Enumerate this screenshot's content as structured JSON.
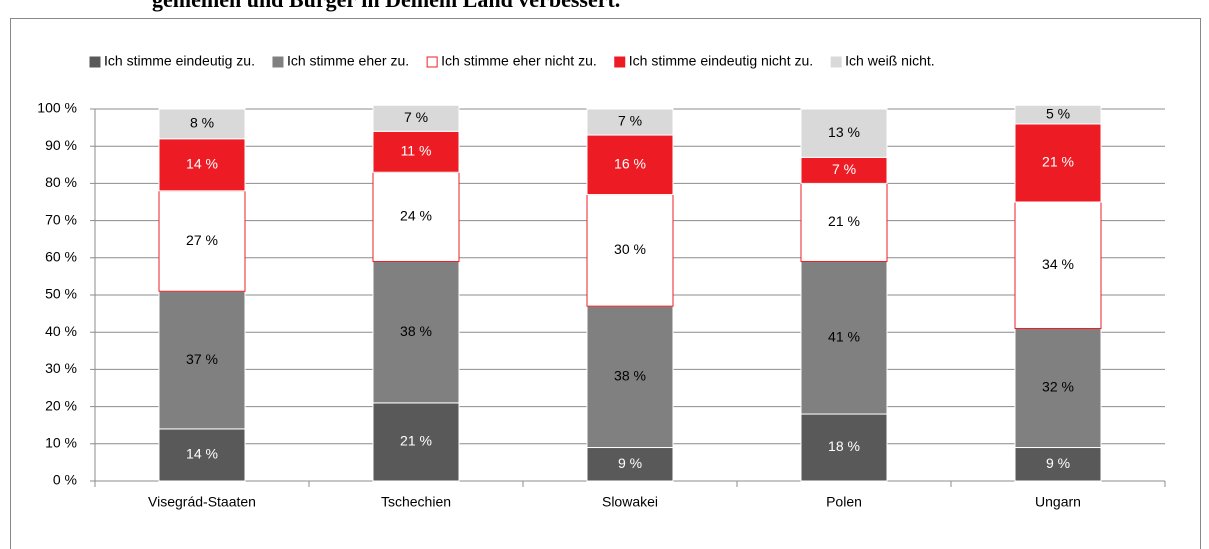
{
  "chart_data": {
    "type": "stacked-bar",
    "title": "gemeinen und Bürger in Deinem Land verbessert.",
    "categories": [
      "Visegrád-Staaten",
      "Tschechien",
      "Slowakei",
      "Polen",
      "Ungarn"
    ],
    "series": [
      {
        "name": "Ich stimme eindeutig zu.",
        "color": "#595959",
        "values": [
          14,
          21,
          9,
          18,
          9
        ],
        "value_labels": [
          "14 %",
          "21 %",
          "9 %",
          "18 %",
          "9 %"
        ]
      },
      {
        "name": "Ich stimme eher zu.",
        "color": "#808080",
        "values": [
          37,
          38,
          38,
          41,
          32
        ],
        "value_labels": [
          "37 %",
          "38 %",
          "38 %",
          "41 %",
          "32 %"
        ]
      },
      {
        "name": "Ich stimme eher nicht zu.",
        "color": "#ffffff",
        "values": [
          27,
          24,
          30,
          21,
          34
        ],
        "value_labels": [
          "27 %",
          "24 %",
          "30 %",
          "21 %",
          "34 %"
        ]
      },
      {
        "name": "Ich stimme eindeutig nicht zu.",
        "color": "#ed1c24",
        "values": [
          14,
          11,
          16,
          7,
          21
        ],
        "value_labels": [
          "14 %",
          "11 %",
          "16 %",
          "7 %",
          "21 %"
        ]
      },
      {
        "name": "Ich weiß nicht.",
        "color": "#d9d9d9",
        "values": [
          8,
          7,
          7,
          13,
          5
        ],
        "value_labels": [
          "8 %",
          "7 %",
          "7 %",
          "13 %",
          "5 %"
        ]
      }
    ],
    "ylim": [
      0,
      100
    ],
    "yticks": [
      {
        "value": 0,
        "label": "0 %"
      },
      {
        "value": 10,
        "label": "10 %"
      },
      {
        "value": 20,
        "label": "20 %"
      },
      {
        "value": 30,
        "label": "30 %"
      },
      {
        "value": 40,
        "label": "40 %"
      },
      {
        "value": 50,
        "label": "50 %"
      },
      {
        "value": 60,
        "label": "60 %"
      },
      {
        "value": 70,
        "label": "70 %"
      },
      {
        "value": 80,
        "label": "80 %"
      },
      {
        "value": 90,
        "label": "90 %"
      },
      {
        "value": 100,
        "label": "100 %"
      }
    ],
    "grid": true,
    "legend": "top"
  }
}
